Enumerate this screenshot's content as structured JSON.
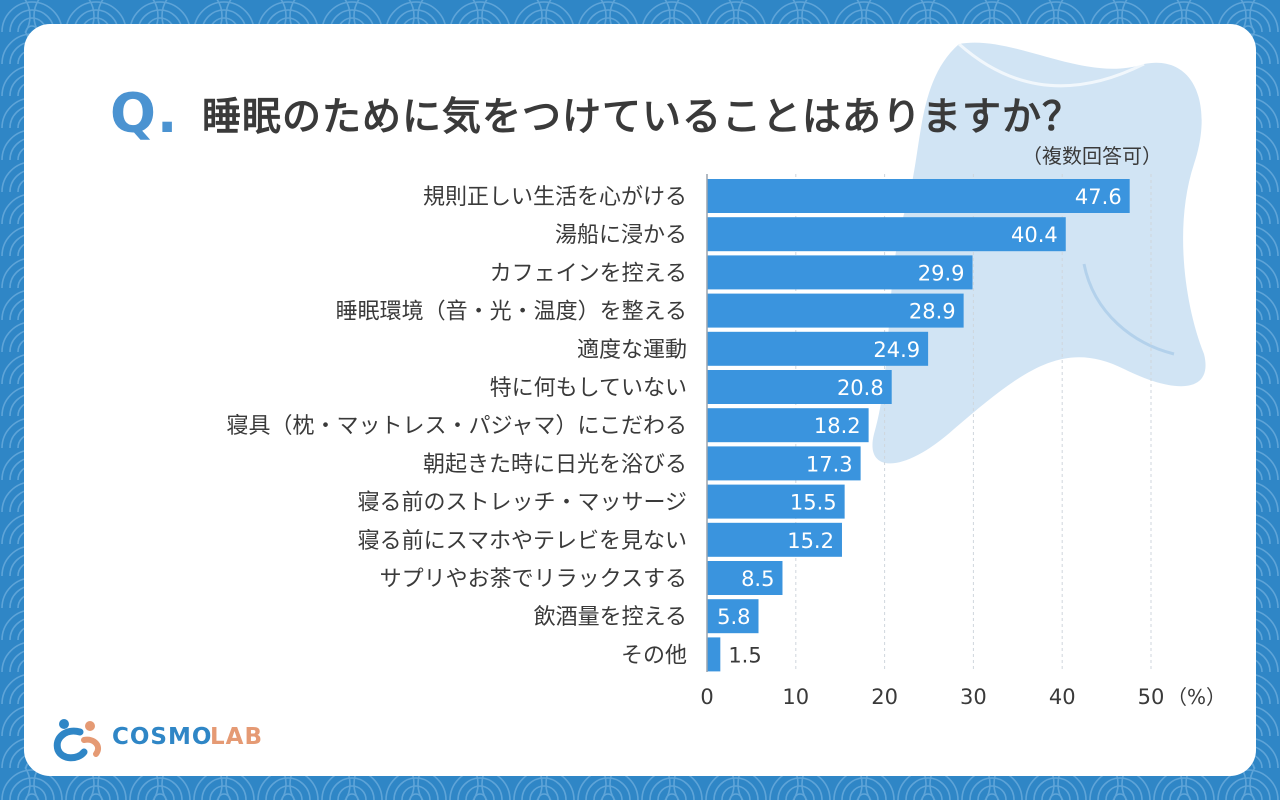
{
  "header": {
    "q_label": "Q",
    "q_dot": ".",
    "title": "睡眠のために気をつけていることはありますか？",
    "note": "（複数回答可）"
  },
  "chart_data": {
    "type": "bar",
    "orientation": "horizontal",
    "title": "睡眠のために気をつけていることはありますか？",
    "subtitle": "（複数回答可）",
    "categories": [
      "規則正しい生活を心がける",
      "湯船に浸かる",
      "カフェインを控える",
      "睡眠環境（音・光・温度）を整える",
      "適度な運動",
      "特に何もしていない",
      "寝具（枕・マットレス・パジャマ）にこだわる",
      "朝起きた時に日光を浴びる",
      "寝る前のストレッチ・マッサージ",
      "寝る前にスマホやテレビを見ない",
      "サプリやお茶でリラックスする",
      "飲酒量を控える",
      "その他"
    ],
    "values": [
      47.6,
      40.4,
      29.9,
      28.9,
      24.9,
      20.8,
      18.2,
      17.3,
      15.5,
      15.2,
      8.5,
      5.8,
      1.5
    ],
    "value_labels": [
      "47.6",
      "40.4",
      "29.9",
      "28.9",
      "24.9",
      "20.8",
      "18.2",
      "17.3",
      "15.5",
      "15.2",
      "8.5",
      "5.8",
      "1.5"
    ],
    "xlim": [
      0,
      50
    ],
    "xticks": [
      0,
      10,
      20,
      30,
      40,
      50
    ],
    "xtick_labels": [
      "0",
      "10",
      "20",
      "30",
      "40",
      "50"
    ],
    "unit": "（%）",
    "grid": true,
    "bar_color": "#3a94de"
  },
  "brand": {
    "name_part1": "COSMO",
    "name_part2": "LAB"
  },
  "colors": {
    "background": "#2f86c6",
    "accent": "#4b93d1",
    "bar": "#3a94de",
    "brand_orange": "#e59a74"
  }
}
